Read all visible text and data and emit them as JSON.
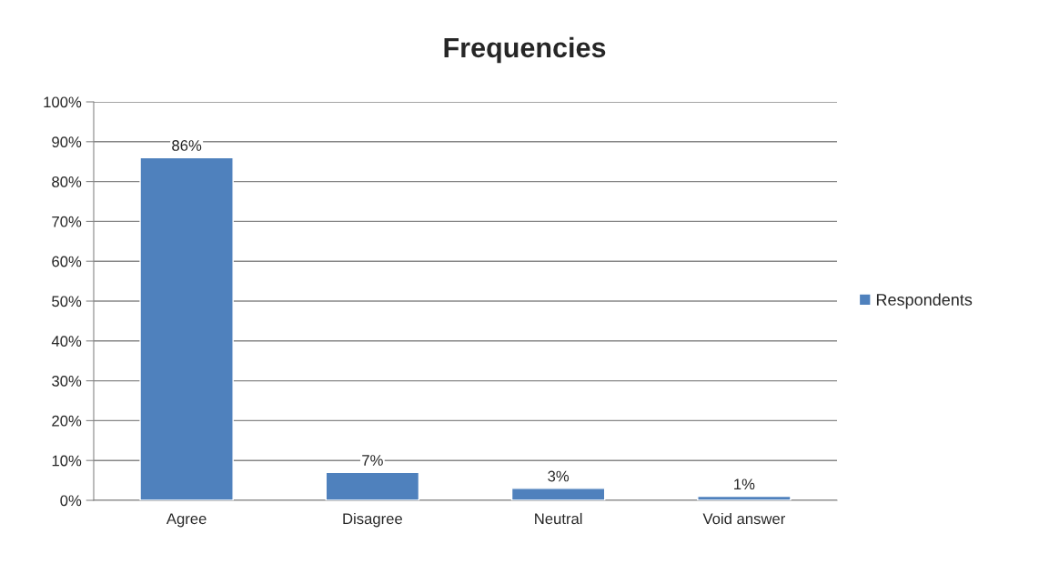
{
  "chart_data": {
    "type": "bar",
    "title": "Frequencies",
    "categories": [
      "Agree",
      "Disagree",
      "Neutral",
      "Void answer"
    ],
    "series": [
      {
        "name": "Respondents",
        "color": "#4f81bd",
        "values": [
          86,
          7,
          3,
          1
        ],
        "value_labels": [
          "86%",
          "7%",
          "3%",
          "1%"
        ]
      }
    ],
    "ylim": [
      0,
      100
    ],
    "yticks": [
      {
        "value": 0,
        "label": "0%"
      },
      {
        "value": 10,
        "label": "10%"
      },
      {
        "value": 20,
        "label": "20%"
      },
      {
        "value": 30,
        "label": "30%"
      },
      {
        "value": 40,
        "label": "40%"
      },
      {
        "value": 50,
        "label": "50%"
      },
      {
        "value": 60,
        "label": "60%"
      },
      {
        "value": 70,
        "label": "70%"
      },
      {
        "value": 80,
        "label": "80%"
      },
      {
        "value": 90,
        "label": "90%"
      },
      {
        "value": 100,
        "label": "100%"
      }
    ],
    "grid": "y",
    "legend": "right"
  }
}
